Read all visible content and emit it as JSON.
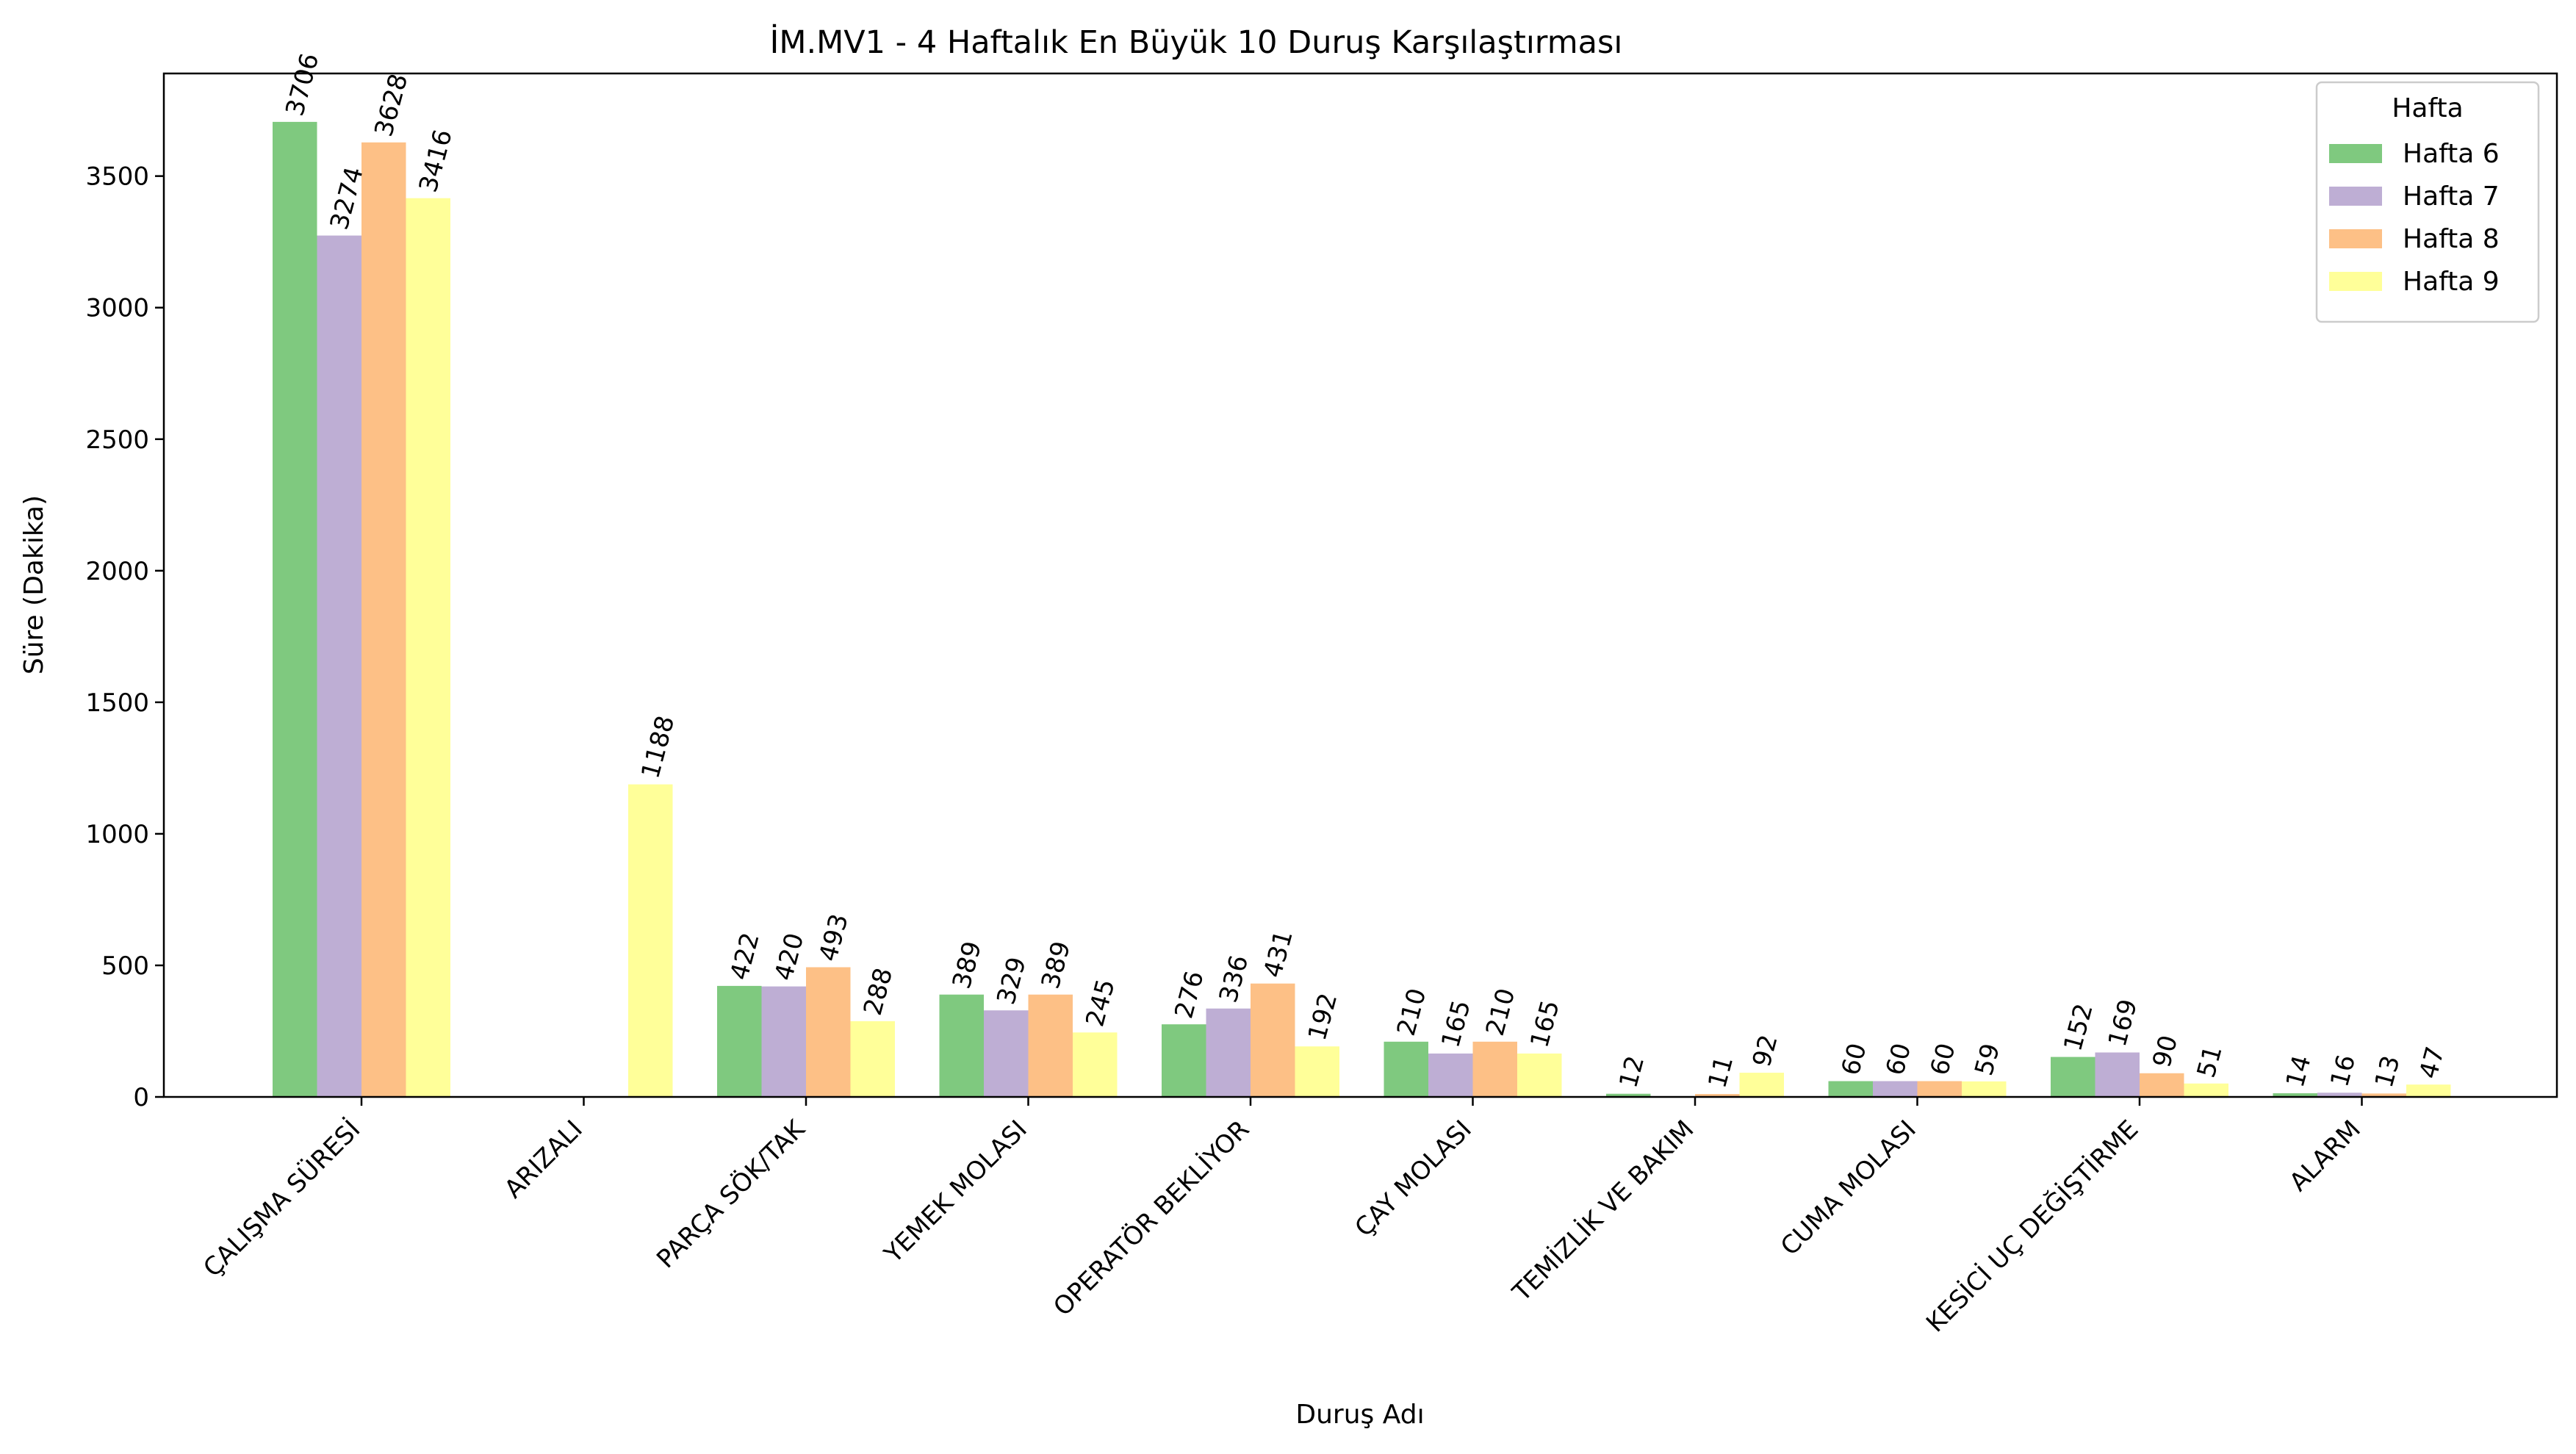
{
  "chart_data": {
    "type": "bar",
    "title": "İM.MV1 - 4 Haftalık En Büyük 10 Duruş Karşılaştırması",
    "xlabel": "Duruş Adı",
    "ylabel": "Süre (Dakika)",
    "ylim": [
      0,
      3890
    ],
    "yticks": [
      0,
      500,
      1000,
      1500,
      2000,
      2500,
      3000,
      3500
    ],
    "grid": false,
    "legend": {
      "title": "Hafta",
      "placement": "top-right"
    },
    "categories": [
      "ÇALIŞMA SÜRESİ",
      "ARIZALI",
      "PARÇA SÖK/TAK",
      "YEMEK MOLASI",
      "OPERATÖR BEKLİYOR",
      "ÇAY MOLASI",
      "TEMİZLİK VE BAKIM",
      "CUMA  MOLASI",
      "KESİCİ UÇ DEĞİŞTİRME",
      "ALARM"
    ],
    "series": [
      {
        "name": "Hafta 6",
        "color": "#7fc97f",
        "values": [
          3706,
          null,
          422,
          389,
          276,
          210,
          12,
          60,
          152,
          14
        ],
        "labels": [
          "3706",
          "",
          "422",
          "389",
          "276",
          "210",
          "12",
          "60",
          "152",
          "14"
        ]
      },
      {
        "name": "Hafta 7",
        "color": "#beaed4",
        "values": [
          3274,
          null,
          420,
          329,
          336,
          165,
          null,
          60,
          169,
          16
        ],
        "labels": [
          "3274",
          "",
          "420",
          "329",
          "336",
          "165",
          "",
          "60",
          "169",
          "16"
        ]
      },
      {
        "name": "Hafta 8",
        "color": "#fdc086",
        "values": [
          3628,
          null,
          493,
          389,
          431,
          210,
          11,
          60,
          90,
          13
        ],
        "labels": [
          "3628",
          "",
          "493",
          "389",
          "431",
          "210",
          "11",
          "60",
          "90",
          "13"
        ]
      },
      {
        "name": "Hafta 9",
        "color": "#ffff99",
        "values": [
          3416,
          1188,
          288,
          245,
          192,
          165,
          92,
          59,
          51,
          47
        ],
        "labels": [
          "3416",
          "1188",
          "288",
          "245",
          "192",
          "165",
          "92",
          "59",
          "51",
          "47"
        ]
      }
    ]
  }
}
